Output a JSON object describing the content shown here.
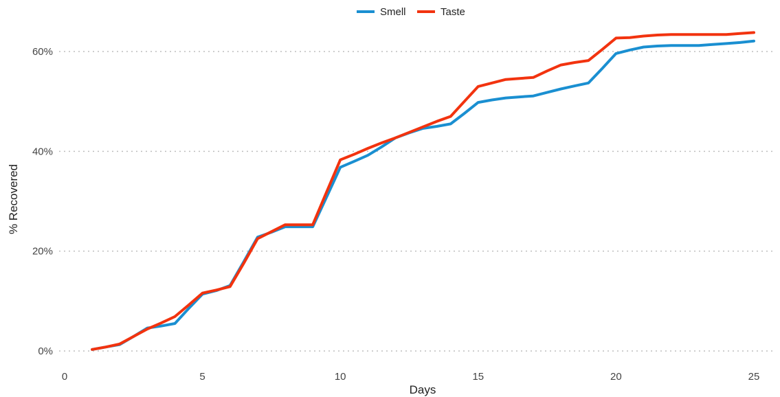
{
  "chart_data": {
    "type": "line",
    "xlabel": "Days",
    "ylabel": "% Recovered",
    "xlim": [
      0,
      25
    ],
    "ylim": [
      0,
      63
    ],
    "x_ticks": [
      0,
      5,
      10,
      15,
      20,
      25
    ],
    "y_ticks": [
      0,
      20,
      40,
      60
    ],
    "y_tick_labels": [
      "0%",
      "20%",
      "40%",
      "60%"
    ],
    "grid": "horizontal dotted",
    "legend_position": "top",
    "series": [
      {
        "name": "Smell",
        "color": "#1a8fd1",
        "x": [
          1,
          1.5,
          2,
          2.5,
          3,
          3.5,
          4,
          4.5,
          5,
          5.5,
          6,
          6.5,
          7,
          7.5,
          8,
          8.5,
          9,
          9.5,
          10,
          10.5,
          11,
          11.5,
          12,
          12.5,
          13,
          13.5,
          14,
          14.5,
          15,
          15.5,
          16,
          16.5,
          17,
          17.5,
          18,
          18.5,
          19,
          19.5,
          20,
          20.5,
          21,
          21.5,
          22,
          22.5,
          23,
          23.5,
          24,
          24.5,
          25
        ],
        "y": [
          0.3,
          0.8,
          1.3,
          2.9,
          4.6,
          5.0,
          5.5,
          8.5,
          11.4,
          12.1,
          13.1,
          17.9,
          22.8,
          23.8,
          24.9,
          24.9,
          24.9,
          30.8,
          36.8,
          38.0,
          39.2,
          40.9,
          42.7,
          43.7,
          44.6,
          45.0,
          45.5,
          47.6,
          49.8,
          50.3,
          50.7,
          50.9,
          51.1,
          51.8,
          52.5,
          53.1,
          53.7,
          56.6,
          59.6,
          60.3,
          60.9,
          61.1,
          61.2,
          61.2,
          61.2,
          61.4,
          61.6,
          61.8,
          62.1
        ]
      },
      {
        "name": "Taste",
        "color": "#f2330f",
        "x": [
          1,
          1.5,
          2,
          2.5,
          3,
          3.5,
          4,
          4.5,
          5,
          5.5,
          6,
          6.5,
          7,
          7.5,
          8,
          8.5,
          9,
          9.5,
          10,
          10.5,
          11,
          11.5,
          12,
          12.5,
          13,
          13.5,
          14,
          14.5,
          15,
          15.5,
          16,
          16.5,
          17,
          17.5,
          18,
          18.5,
          19,
          19.5,
          20,
          20.5,
          21,
          21.5,
          22,
          22.5,
          23,
          23.5,
          24,
          24.5,
          25
        ],
        "y": [
          0.3,
          0.8,
          1.4,
          2.9,
          4.4,
          5.6,
          6.9,
          9.2,
          11.6,
          12.2,
          12.9,
          17.6,
          22.5,
          23.9,
          25.3,
          25.3,
          25.3,
          31.8,
          38.3,
          39.4,
          40.6,
          41.7,
          42.7,
          43.8,
          44.9,
          46.0,
          47.0,
          50.0,
          53.0,
          53.7,
          54.4,
          54.6,
          54.8,
          56.1,
          57.3,
          57.8,
          58.2,
          60.4,
          62.7,
          62.8,
          63.1,
          63.3,
          63.4,
          63.4,
          63.4,
          63.4,
          63.4,
          63.6,
          63.8
        ]
      }
    ]
  }
}
